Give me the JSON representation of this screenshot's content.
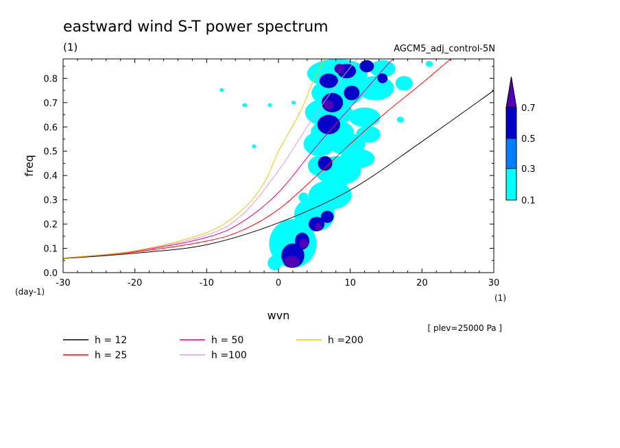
{
  "chart_data": {
    "type": "heatmap",
    "title": "eastward wind S-T power spectrum",
    "subtitle_left": "(1)",
    "subtitle_right": "AGCM5_adj_control-5N",
    "xlabel": "wvn",
    "ylabel": "freq",
    "x_unit": "(1)",
    "y_unit": "(day-1)",
    "note": "[ plev=25000 Pa ]",
    "xlim": [
      -30,
      30
    ],
    "ylim": [
      0,
      0.88
    ],
    "x_ticks": [
      "-30",
      "-20",
      "-10",
      "0",
      "10",
      "20",
      "30"
    ],
    "y_ticks": [
      "0.0",
      "0.1",
      "0.2",
      "0.3",
      "0.4",
      "0.5",
      "0.6",
      "0.7",
      "0.8"
    ],
    "x_tick_values": [
      -30,
      -20,
      -10,
      0,
      10,
      20,
      30
    ],
    "y_tick_values": [
      0,
      0.1,
      0.2,
      0.3,
      0.4,
      0.5,
      0.6,
      0.7,
      0.8
    ],
    "colorbar": {
      "labels": [
        "0.1",
        "0.3",
        "0.5",
        "0.7"
      ],
      "levels": [
        0.1,
        0.3,
        0.5,
        0.7
      ],
      "colors": [
        "#00ffff",
        "#0080ff",
        "#0000c8",
        "#5000b4"
      ],
      "extend": "max"
    },
    "contour_fill_colors": {
      "l1": "#00ffff",
      "l3": "#0000c8",
      "l4": "#5000b4"
    },
    "series": [
      {
        "name": "h = 12",
        "color": "#000000",
        "x": [
          -30,
          -20,
          -10,
          0,
          10,
          20,
          30
        ],
        "y": [
          0.058,
          0.08,
          0.115,
          0.205,
          0.34,
          0.54,
          0.75
        ]
      },
      {
        "name": "h = 25",
        "color": "#ff0000",
        "x": [
          -30,
          -20,
          -10,
          -5,
          0,
          5,
          10,
          15,
          20,
          24
        ],
        "y": [
          0.06,
          0.085,
          0.13,
          0.175,
          0.26,
          0.39,
          0.53,
          0.66,
          0.78,
          0.88
        ]
      },
      {
        "name": "h = 50",
        "color": "#e6008c",
        "x": [
          -30,
          -20,
          -10,
          -5,
          0,
          5,
          10,
          15,
          16
        ],
        "y": [
          0.06,
          0.088,
          0.145,
          0.21,
          0.33,
          0.51,
          0.68,
          0.85,
          0.88
        ]
      },
      {
        "name": "h =100",
        "color": "#e696e6",
        "x": [
          -30,
          -20,
          -10,
          -5,
          0,
          4,
          8,
          11
        ],
        "y": [
          0.06,
          0.09,
          0.155,
          0.24,
          0.42,
          0.6,
          0.77,
          0.88
        ]
      },
      {
        "name": "h =200",
        "color": "#f0c800",
        "x": [
          -30,
          -20,
          -10,
          -5,
          -2,
          0,
          3,
          5,
          6.5
        ],
        "y": [
          0.06,
          0.09,
          0.165,
          0.26,
          0.37,
          0.5,
          0.66,
          0.8,
          0.88
        ]
      }
    ],
    "contours": {
      "l1": [
        {
          "x": -0.5,
          "y": 0.04,
          "rx": 1.0,
          "ry": 0.03
        },
        {
          "x": 2,
          "y": 0.12,
          "rx": 3.3,
          "ry": 0.1
        },
        {
          "x": 5,
          "y": 0.24,
          "rx": 2.8,
          "ry": 0.07
        },
        {
          "x": 7.2,
          "y": 0.32,
          "rx": 3.0,
          "ry": 0.06
        },
        {
          "x": 8.3,
          "y": 0.42,
          "rx": 3.2,
          "ry": 0.06
        },
        {
          "x": 5.5,
          "y": 0.44,
          "rx": 1.4,
          "ry": 0.04
        },
        {
          "x": 11,
          "y": 0.47,
          "rx": 2.4,
          "ry": 0.04
        },
        {
          "x": 5.7,
          "y": 0.53,
          "rx": 2.2,
          "ry": 0.05
        },
        {
          "x": 9.5,
          "y": 0.53,
          "rx": 2.6,
          "ry": 0.045
        },
        {
          "x": 7.5,
          "y": 0.58,
          "rx": 3.0,
          "ry": 0.05
        },
        {
          "x": 12.5,
          "y": 0.57,
          "rx": 1.7,
          "ry": 0.035
        },
        {
          "x": 7.0,
          "y": 0.66,
          "rx": 3.3,
          "ry": 0.06
        },
        {
          "x": 12,
          "y": 0.64,
          "rx": 2.2,
          "ry": 0.04
        },
        {
          "x": 8.2,
          "y": 0.74,
          "rx": 3.6,
          "ry": 0.06
        },
        {
          "x": 13.5,
          "y": 0.76,
          "rx": 2.6,
          "ry": 0.05
        },
        {
          "x": 8.2,
          "y": 0.82,
          "rx": 4.2,
          "ry": 0.06
        },
        {
          "x": 14.5,
          "y": 0.84,
          "rx": 1.8,
          "ry": 0.035
        },
        {
          "x": 17.5,
          "y": 0.78,
          "rx": 1.2,
          "ry": 0.03
        },
        {
          "x": 3.5,
          "y": 0.31,
          "rx": 0.7,
          "ry": 0.02
        },
        {
          "x": 17,
          "y": 0.63,
          "rx": 0.5,
          "ry": 0.012
        },
        {
          "x": 21,
          "y": 0.86,
          "rx": 0.5,
          "ry": 0.012
        },
        {
          "x": -7.9,
          "y": 0.752,
          "rx": 0.3,
          "ry": 0.008
        },
        {
          "x": -4.7,
          "y": 0.69,
          "rx": 0.35,
          "ry": 0.008
        },
        {
          "x": -1.2,
          "y": 0.69,
          "rx": 0.3,
          "ry": 0.008
        },
        {
          "x": 2.1,
          "y": 0.7,
          "rx": 0.3,
          "ry": 0.008
        },
        {
          "x": -3.4,
          "y": 0.52,
          "rx": 0.3,
          "ry": 0.008
        }
      ],
      "l3": [
        {
          "x": 2,
          "y": 0.07,
          "rx": 1.6,
          "ry": 0.05
        },
        {
          "x": 3.3,
          "y": 0.13,
          "rx": 1.0,
          "ry": 0.035
        },
        {
          "x": 5.3,
          "y": 0.2,
          "rx": 1.1,
          "ry": 0.03
        },
        {
          "x": 6.8,
          "y": 0.23,
          "rx": 0.9,
          "ry": 0.025
        },
        {
          "x": 6.5,
          "y": 0.45,
          "rx": 1.0,
          "ry": 0.03
        },
        {
          "x": 7.0,
          "y": 0.61,
          "rx": 1.6,
          "ry": 0.04
        },
        {
          "x": 7.5,
          "y": 0.7,
          "rx": 1.5,
          "ry": 0.04
        },
        {
          "x": 10.2,
          "y": 0.74,
          "rx": 1.1,
          "ry": 0.03
        },
        {
          "x": 7.0,
          "y": 0.79,
          "rx": 1.3,
          "ry": 0.03
        },
        {
          "x": 9.5,
          "y": 0.83,
          "rx": 1.3,
          "ry": 0.03
        },
        {
          "x": 12.3,
          "y": 0.85,
          "rx": 1.0,
          "ry": 0.025
        },
        {
          "x": 14.5,
          "y": 0.8,
          "rx": 0.7,
          "ry": 0.02
        }
      ],
      "l4": [
        {
          "x": 1.8,
          "y": 0.045,
          "rx": 1.1,
          "ry": 0.025
        },
        {
          "x": 3.5,
          "y": 0.12,
          "rx": 0.6,
          "ry": 0.02
        },
        {
          "x": 5.5,
          "y": 0.19,
          "rx": 0.5,
          "ry": 0.015
        },
        {
          "x": 7.0,
          "y": 0.69,
          "rx": 0.7,
          "ry": 0.02
        },
        {
          "x": 8.5,
          "y": 0.84,
          "rx": 0.7,
          "ry": 0.02
        }
      ]
    }
  }
}
